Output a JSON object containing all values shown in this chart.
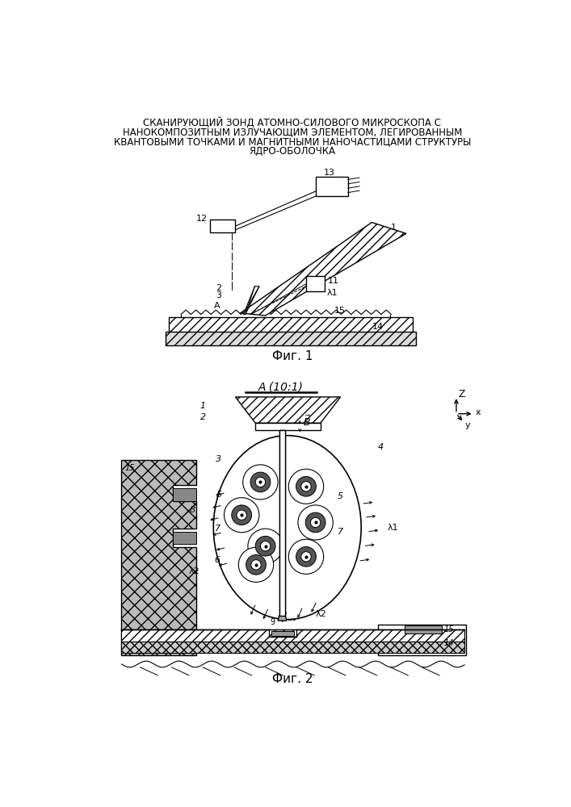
{
  "title_lines": [
    "СКАНИРУЮЩИЙ ЗОНД АТОМНО-СИЛОВОГО МИКРОСКОПА С",
    "НАНОКОМПОЗИТНЫМ ИЗЛУЧАЮЩИМ ЭЛЕМЕНТОМ, ЛЕГИРОВАННЫМ",
    "КВАНТОВЫМИ ТОЧКАМИ И МАГНИТНЫМИ НАНОЧАСТИЦАМИ СТРУКТУРЫ",
    "ЯДРО-ОБОЛОЧКА"
  ],
  "fig1_caption": "Фиг. 1",
  "fig2_caption": "Фиг. 2",
  "fig2_title": "А (10:1)",
  "bg_color": "#ffffff",
  "line_color": "#000000"
}
